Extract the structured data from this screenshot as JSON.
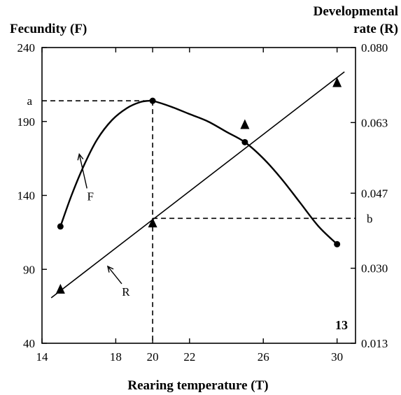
{
  "chart_data": {
    "type": "line",
    "number": "13",
    "xlabel": "Rearing temperature (T)",
    "ylabel_left": "Fecundity (F)",
    "ylabel_right_line1": "Developmental",
    "ylabel_right_line2": "rate (R)",
    "xlim": [
      14,
      31
    ],
    "ylim_left": [
      40,
      240
    ],
    "ylim_right": [
      0.013,
      0.08
    ],
    "x_ticks": [
      14,
      18,
      20,
      22,
      26,
      30
    ],
    "x_tick_labels": [
      "14",
      "18",
      "20",
      "22",
      "26",
      "30"
    ],
    "y_left_ticks": [
      240,
      190,
      140,
      90,
      40
    ],
    "y_left_tick_labels": [
      "240",
      "190",
      "140",
      "90",
      "40"
    ],
    "y_right_ticks": [
      0.08,
      0.063,
      0.047,
      0.03,
      0.013
    ],
    "y_right_tick_labels": [
      "0.080",
      "0.063",
      "0.047",
      "0.030",
      "0.013"
    ],
    "series": [
      {
        "name": "F",
        "axis": "left",
        "style": "curve",
        "x": [
          15,
          20,
          25,
          30
        ],
        "y": [
          119,
          204,
          176,
          107
        ],
        "curve_x": [
          15,
          15.6,
          16.3,
          17.0,
          17.8,
          18.6,
          19.3,
          19.8,
          20,
          21,
          22,
          23,
          24,
          25,
          26,
          27,
          28,
          29,
          30
        ],
        "curve_y": [
          119,
          140,
          161,
          178,
          191,
          199,
          203,
          204,
          204,
          200,
          195,
          190,
          183,
          176,
          165,
          151,
          135,
          119,
          107
        ]
      },
      {
        "name": "R",
        "axis": "right",
        "style": "straight",
        "line_x": [
          14.5,
          30.4
        ],
        "line_y": [
          0.0233,
          0.0745
        ],
        "observed_x": [
          15,
          20,
          25,
          30
        ],
        "observed_y": [
          0.0252,
          0.0402,
          0.0625,
          0.072
        ]
      }
    ],
    "annotations": {
      "a": {
        "label": "a",
        "x": 20,
        "y_left": 204
      },
      "b": {
        "label": "b",
        "x": 20,
        "y_right": 0.0413
      },
      "F_label": {
        "label": "F",
        "x": 16.4,
        "y_left": 149
      },
      "R_label": {
        "label": "R",
        "x": 18.4,
        "y_left": 75
      }
    }
  }
}
